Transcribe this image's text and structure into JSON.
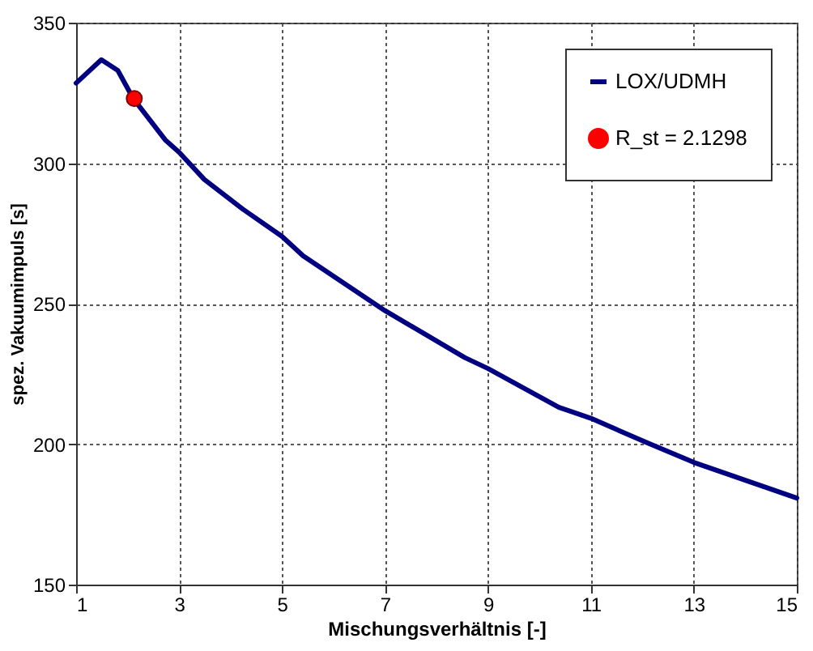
{
  "chart_data": {
    "type": "line",
    "xlabel": "Mischungsverhältnis [-]",
    "ylabel": "spez. Vakuumimpuls [s]",
    "xlim": [
      1,
      15
    ],
    "xticks": [
      1,
      3,
      5,
      7,
      9,
      11,
      13,
      15
    ],
    "ylim": [
      150,
      350
    ],
    "yticks": [
      150,
      200,
      250,
      300,
      350
    ],
    "grid": true,
    "legend": "top right",
    "line_style": "solid",
    "series": [
      {
        "name": "LOX/UDMH",
        "color": "#000080",
        "marker": "none",
        "x": [
          1,
          1.49,
          1.81,
          2.11,
          2.73,
          3,
          3.49,
          4.24,
          5,
          5.41,
          7,
          8.55,
          9,
          10.38,
          11,
          12.1,
          13,
          15
        ],
        "values": [
          328.5,
          336.8,
          333,
          323,
          308.3,
          303.9,
          294.2,
          283.6,
          273.9,
          267,
          247.5,
          230.8,
          226.9,
          213.1,
          209.2,
          200.4,
          193.5,
          180.8
        ]
      },
      {
        "name": "R_st = 2.1298",
        "color": "#ff0000",
        "type": "scatter",
        "marker": "circle",
        "x": [
          2.1298
        ],
        "values": [
          323
        ]
      }
    ]
  }
}
